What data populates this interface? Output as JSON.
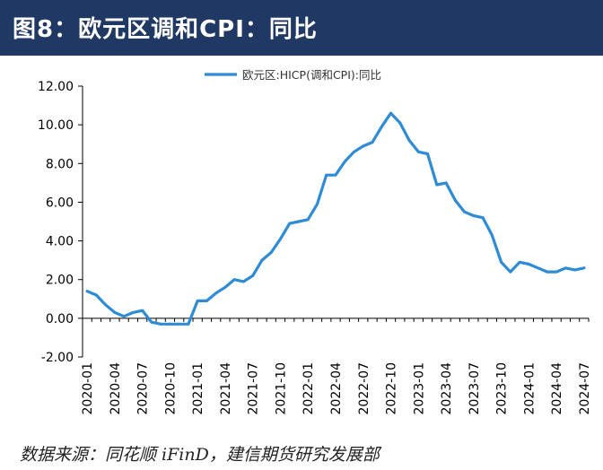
{
  "figure": {
    "title": "图8：欧元区调和CPI：同比",
    "source": "数据来源：同花顺 iFinD，建信期货研究发展部"
  },
  "colors": {
    "header_bg": "#1f3864",
    "line": "#2e8bd6",
    "axis": "#000000"
  },
  "chart_data": {
    "type": "line",
    "title": "",
    "legend_position": "top-center",
    "xlabel": "",
    "ylabel": "",
    "ylim": [
      -2,
      12
    ],
    "y_ticks": [
      "-2.00",
      "0.00",
      "2.00",
      "4.00",
      "6.00",
      "8.00",
      "10.00",
      "12.00"
    ],
    "x_tick_labels": [
      "2020-01",
      "2020-04",
      "2020-07",
      "2020-10",
      "2021-01",
      "2021-04",
      "2021-07",
      "2021-10",
      "2022-01",
      "2022-04",
      "2022-07",
      "2022-10",
      "2023-01",
      "2023-04",
      "2023-07",
      "2023-10",
      "2024-01",
      "2024-04",
      "2024-07"
    ],
    "series": [
      {
        "name": "欧元区:HICP(调和CPI):同比",
        "x": [
          "2020-01",
          "2020-02",
          "2020-03",
          "2020-04",
          "2020-05",
          "2020-06",
          "2020-07",
          "2020-08",
          "2020-09",
          "2020-10",
          "2020-11",
          "2020-12",
          "2021-01",
          "2021-02",
          "2021-03",
          "2021-04",
          "2021-05",
          "2021-06",
          "2021-07",
          "2021-08",
          "2021-09",
          "2021-10",
          "2021-11",
          "2021-12",
          "2022-01",
          "2022-02",
          "2022-03",
          "2022-04",
          "2022-05",
          "2022-06",
          "2022-07",
          "2022-08",
          "2022-09",
          "2022-10",
          "2022-11",
          "2022-12",
          "2023-01",
          "2023-02",
          "2023-03",
          "2023-04",
          "2023-05",
          "2023-06",
          "2023-07",
          "2023-08",
          "2023-09",
          "2023-10",
          "2023-11",
          "2023-12",
          "2024-01",
          "2024-02",
          "2024-03",
          "2024-04",
          "2024-05",
          "2024-06",
          "2024-07"
        ],
        "values": [
          1.4,
          1.2,
          0.7,
          0.3,
          0.1,
          0.3,
          0.4,
          -0.2,
          -0.3,
          -0.3,
          -0.3,
          -0.3,
          0.9,
          0.9,
          1.3,
          1.6,
          2.0,
          1.9,
          2.2,
          3.0,
          3.4,
          4.1,
          4.9,
          5.0,
          5.1,
          5.9,
          7.4,
          7.4,
          8.1,
          8.6,
          8.9,
          9.1,
          9.9,
          10.6,
          10.1,
          9.2,
          8.6,
          8.5,
          6.9,
          7.0,
          6.1,
          5.5,
          5.3,
          5.2,
          4.3,
          2.9,
          2.4,
          2.9,
          2.8,
          2.6,
          2.4,
          2.4,
          2.6,
          2.5,
          2.6
        ]
      }
    ]
  }
}
